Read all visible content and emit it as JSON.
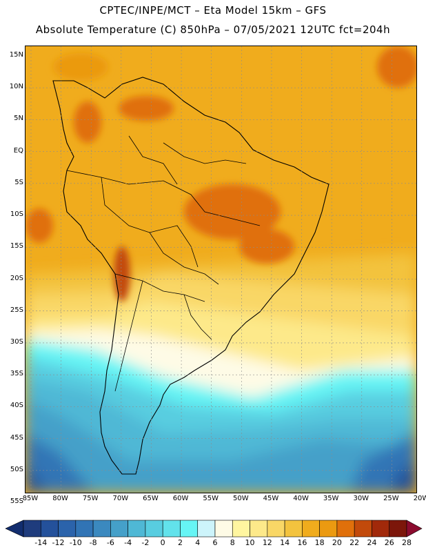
{
  "header": {
    "title_line1": "CPTEC/INPE/MCT –  Eta Model 15km – GFS",
    "title_line2": "Absolute Temperature (C) 850hPa – 07/05/2021 12UTC fct=204h"
  },
  "map": {
    "lat_ticks": [
      "15N",
      "10N",
      "5N",
      "EQ",
      "5S",
      "10S",
      "15S",
      "20S",
      "25S",
      "30S",
      "35S",
      "40S",
      "45S",
      "50S",
      "55S"
    ],
    "lon_ticks": [
      "85W",
      "80W",
      "75W",
      "70W",
      "65W",
      "60W",
      "55W",
      "50W",
      "45W",
      "40W",
      "35W",
      "30W",
      "25W",
      "20W"
    ],
    "lat_range": [
      15,
      -55
    ],
    "lon_range": [
      -85,
      -20
    ]
  },
  "colorbar": {
    "labels": [
      "-14",
      "-12",
      "-10",
      "-8",
      "-6",
      "-4",
      "-2",
      "0",
      "2",
      "4",
      "6",
      "8",
      "10",
      "12",
      "14",
      "16",
      "18",
      "20",
      "22",
      "24",
      "26",
      "28"
    ],
    "colors": [
      "#1f3c7d",
      "#24519b",
      "#2b63ab",
      "#3174b5",
      "#3b89bf",
      "#45a0c9",
      "#4fb8d5",
      "#58cde0",
      "#62e2eb",
      "#66f5f5",
      "#cdf4fb",
      "#fefbe6",
      "#fff6a0",
      "#fde98a",
      "#f9d766",
      "#f3c33e",
      "#f0ac1d",
      "#eb9a11",
      "#e0700b",
      "#c24a0b",
      "#a1290a",
      "#7c160a"
    ],
    "low_end_color": "#122d6e",
    "high_end_color": "#8b0b2e"
  }
}
